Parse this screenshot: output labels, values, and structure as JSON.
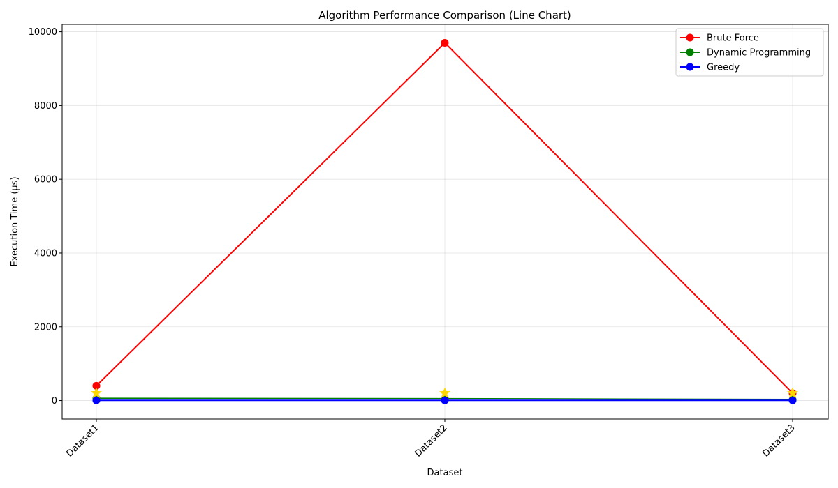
{
  "chart_data": {
    "type": "line",
    "title": "Algorithm Performance Comparison (Line Chart)",
    "xlabel": "Dataset",
    "ylabel": "Execution Time (μs)",
    "categories": [
      "Dataset1",
      "Dataset2",
      "Dataset3"
    ],
    "ylim": [
      -500,
      10200
    ],
    "yticks": [
      0,
      2000,
      4000,
      6000,
      8000,
      10000
    ],
    "grid": true,
    "legend_position": "top-right",
    "series": [
      {
        "name": "Brute Force",
        "color": "#ff0000",
        "values": [
          400,
          9700,
          200
        ]
      },
      {
        "name": "Dynamic Programming",
        "color": "#008000",
        "values": [
          60,
          50,
          30
        ]
      },
      {
        "name": "Greedy",
        "color": "#0000ff",
        "values": [
          5,
          5,
          5
        ]
      }
    ],
    "star_markers": {
      "color": "#ffd700",
      "points": [
        {
          "category": "Dataset1",
          "value": 200
        },
        {
          "category": "Dataset2",
          "value": 200
        },
        {
          "category": "Dataset3",
          "value": 200
        }
      ]
    }
  }
}
